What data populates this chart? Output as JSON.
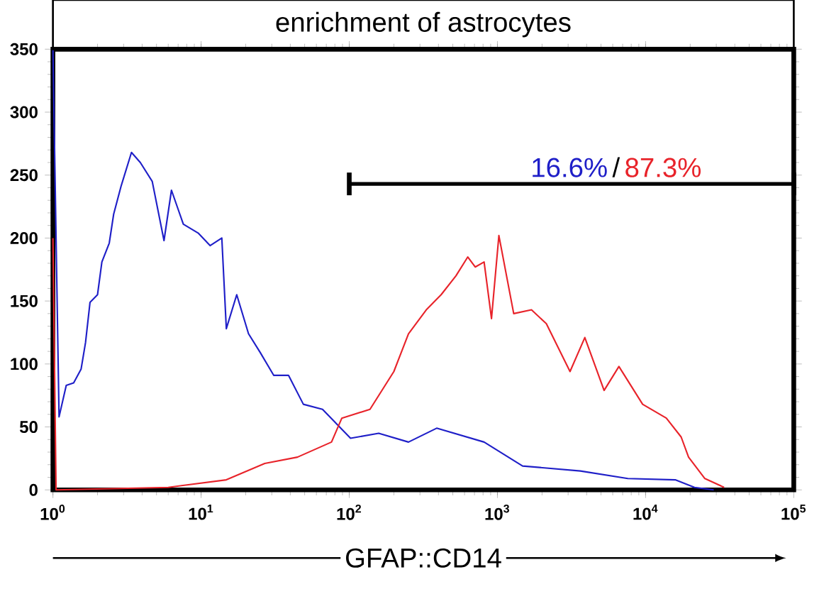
{
  "chart_data": {
    "type": "line",
    "title": "enrichment of astrocytes",
    "xlabel": "GFAP::CD14",
    "log": "x",
    "xlim": [
      1,
      100000
    ],
    "ylim": [
      0,
      350
    ],
    "xticks": [
      {
        "value": 1,
        "label": "10$^{0}$"
      },
      {
        "value": 10,
        "label": "10$^{1}$"
      },
      {
        "value": 100,
        "label": "10$^{2}$"
      },
      {
        "value": 1000,
        "label": "10$^{3}$"
      },
      {
        "value": 10000,
        "label": "10$^{4}$"
      },
      {
        "value": 100000,
        "label": "10$^{5}$"
      }
    ],
    "yticks": [
      0,
      50,
      100,
      150,
      200,
      250,
      300,
      350
    ],
    "grid": false,
    "marker": "none",
    "line_style": "solid",
    "series": [
      {
        "color": "#1f1fc8",
        "x": [
          1,
          1.1,
          1.23,
          1.38,
          1.55,
          1.66,
          1.78,
          2.0,
          2.14,
          2.4,
          2.57,
          2.88,
          3.39,
          3.89,
          4.68,
          5.62,
          6.31,
          7.59,
          9.55,
          11.5,
          13.8,
          14.8,
          17.4,
          20.9,
          25.1,
          30.9,
          38.9,
          49,
          66,
          102,
          158,
          251,
          389,
          813,
          1479,
          3631,
          7586,
          15849,
          21380,
          28840
        ],
        "values": [
          350,
          58,
          83,
          85,
          96,
          117,
          149,
          155,
          181,
          196,
          219,
          241,
          268,
          260,
          245,
          198,
          238,
          211,
          204,
          194,
          200,
          128,
          155,
          124,
          109,
          91,
          91,
          68,
          64,
          41,
          45,
          38,
          49,
          38,
          19,
          15,
          9,
          8,
          2,
          0
        ]
      },
      {
        "color": "#e8232a",
        "x": [
          1,
          1.05,
          6.0,
          14.8,
          26.9,
          44.7,
          75.9,
          89.1,
          138,
          200,
          251,
          331,
          417,
          525,
          631,
          708,
          813,
          912,
          1023,
          1288,
          1698,
          2138,
          3090,
          3890,
          5248,
          6607,
          9550,
          13800,
          17380,
          19500,
          25120,
          33880
        ],
        "values": [
          200,
          0,
          2,
          8,
          21,
          26,
          38,
          57,
          64,
          94,
          124,
          143,
          155,
          170,
          185,
          177,
          181,
          136,
          202,
          140,
          143,
          132,
          94,
          121,
          79,
          98,
          68,
          57,
          42,
          26,
          9,
          2
        ]
      },
      {
        "color": "#000000",
        "x": [
          100,
          100000
        ],
        "values": [
          243,
          243
        ]
      }
    ],
    "annotations": [
      "16.6%",
      "/",
      "87.3%"
    ]
  }
}
